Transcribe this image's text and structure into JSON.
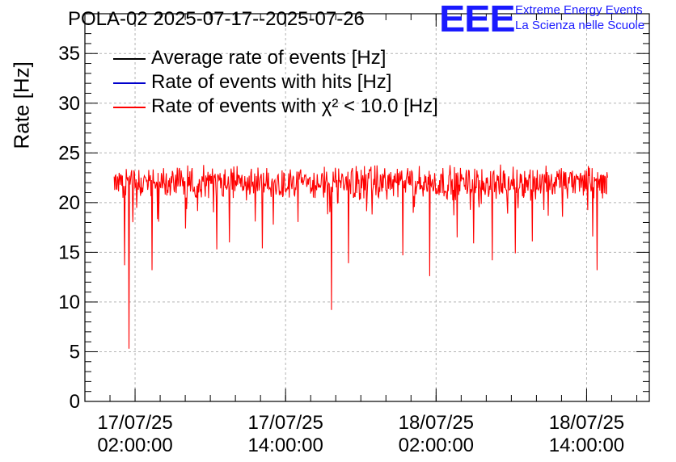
{
  "title": "POLA-02 2025-07-17--2025-07-26",
  "logo": {
    "mark": "EEE",
    "line1": "Extreme Energy Events",
    "line2": "La Scienza nelle Scuole"
  },
  "chart_data": {
    "type": "line",
    "title": "POLA-02 2025-07-17--2025-07-26",
    "ylabel": "Rate [Hz]",
    "xlabel": "",
    "ylim": [
      0,
      39
    ],
    "yticks": [
      "0",
      "5",
      "10",
      "15",
      "20",
      "25",
      "30",
      "35"
    ],
    "xticks": [
      {
        "date": "17/07/25",
        "time": "02:00:00"
      },
      {
        "date": "17/07/25",
        "time": "14:00:00"
      },
      {
        "date": "18/07/25",
        "time": "02:00:00"
      },
      {
        "date": "18/07/25",
        "time": "14:00:00"
      }
    ],
    "xrange": [
      "2025-07-16 22:00:00",
      "2025-07-18 19:00:00"
    ],
    "grid": true,
    "legend_position": "top-left",
    "series": [
      {
        "name": "Average rate of events [Hz]",
        "color": "#000000",
        "approx_mean": 22.0
      },
      {
        "name": "Rate of events with hits [Hz]",
        "color": "#0000cc",
        "approx_mean": 22.0
      },
      {
        "name": "Rate of events with χ² < 10.0 [Hz]",
        "color": "#ff0000",
        "approx_mean": 22.0,
        "notable_dips": [
          {
            "time": "2025-07-17 01:10:00",
            "value": 13.7
          },
          {
            "time": "2025-07-17 01:30:00",
            "value": 5.3
          },
          {
            "time": "2025-07-17 03:20:00",
            "value": 13.2
          },
          {
            "time": "2025-07-17 08:30:00",
            "value": 15.3
          },
          {
            "time": "2025-07-17 09:30:00",
            "value": 16.0
          },
          {
            "time": "2025-07-17 12:10:00",
            "value": 15.4
          },
          {
            "time": "2025-07-17 17:40:00",
            "value": 9.2
          },
          {
            "time": "2025-07-17 19:00:00",
            "value": 13.9
          },
          {
            "time": "2025-07-17 23:20:00",
            "value": 14.7
          },
          {
            "time": "2025-07-18 01:30:00",
            "value": 12.6
          },
          {
            "time": "2025-07-18 03:40:00",
            "value": 16.5
          },
          {
            "time": "2025-07-18 05:00:00",
            "value": 15.9
          },
          {
            "time": "2025-07-18 06:30:00",
            "value": 14.2
          },
          {
            "time": "2025-07-18 08:20:00",
            "value": 14.9
          },
          {
            "time": "2025-07-18 09:40:00",
            "value": 16.1
          },
          {
            "time": "2025-07-18 14:30:00",
            "value": 16.6
          },
          {
            "time": "2025-07-18 14:50:00",
            "value": 13.2
          }
        ]
      }
    ]
  }
}
